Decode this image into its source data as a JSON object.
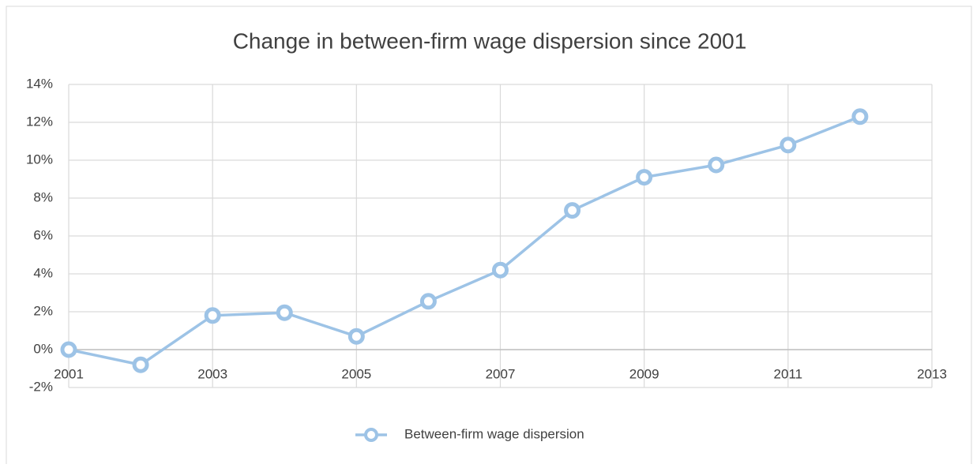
{
  "chart_data": {
    "type": "line",
    "title": "Change in between-firm wage dispersion since 2001",
    "x": [
      2001,
      2002,
      2003,
      2004,
      2005,
      2006,
      2007,
      2008,
      2009,
      2010,
      2011,
      2012
    ],
    "series": [
      {
        "name": "Between-firm wage dispersion",
        "color": "#9dc3e6",
        "values": [
          0,
          -0.8,
          1.8,
          1.95,
          0.7,
          2.55,
          4.2,
          7.35,
          9.1,
          9.75,
          10.8,
          12.3
        ]
      }
    ],
    "xlim": [
      2001,
      2013
    ],
    "xticks": [
      2001,
      2003,
      2005,
      2007,
      2009,
      2011,
      2013
    ],
    "ylim": [
      -2,
      14
    ],
    "yticks": [
      {
        "value": -2,
        "label": "-2%"
      },
      {
        "value": 0,
        "label": "0%"
      },
      {
        "value": 2,
        "label": "2%"
      },
      {
        "value": 4,
        "label": "4%"
      },
      {
        "value": 6,
        "label": "6%"
      },
      {
        "value": 8,
        "label": "8%"
      },
      {
        "value": 10,
        "label": "10%"
      },
      {
        "value": 12,
        "label": "12%"
      },
      {
        "value": 14,
        "label": "14%"
      }
    ],
    "grid": true,
    "legend": "bottom"
  }
}
